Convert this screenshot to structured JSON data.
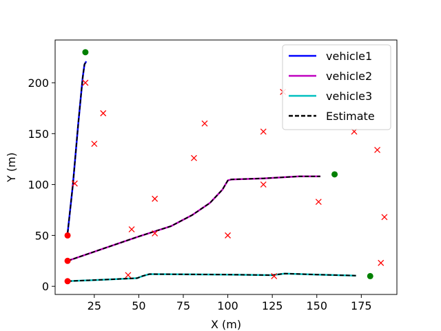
{
  "chart_data": {
    "type": "line",
    "title": "",
    "xlabel": "X (m)",
    "ylabel": "Y (m)",
    "xlim": [
      3,
      195
    ],
    "ylim": [
      -8,
      242
    ],
    "xticks": [
      25,
      50,
      75,
      100,
      125,
      150,
      175
    ],
    "yticks": [
      0,
      50,
      100,
      150,
      200
    ],
    "grid": false,
    "legend_position": "top-right",
    "series": [
      {
        "name": "vehicle1",
        "color": "#0000ff",
        "x": [
          10,
          13,
          16,
          18.5,
          19.5,
          20.5
        ],
        "y": [
          52,
          100,
          160,
          205,
          218,
          221
        ]
      },
      {
        "name": "vehicle2",
        "color": "#bf00bf",
        "x": [
          10,
          30,
          50,
          68,
          80,
          90,
          97,
          100,
          102,
          120,
          140,
          152
        ],
        "y": [
          25,
          37,
          49,
          59,
          70,
          82,
          95,
          104,
          105,
          106,
          108,
          108
        ]
      },
      {
        "name": "vehicle3",
        "color": "#00bfbf",
        "x": [
          10,
          30,
          49,
          52,
          56,
          100,
          125,
          132,
          150,
          172
        ],
        "y": [
          5,
          6.5,
          8,
          10,
          12,
          11.5,
          11,
          12.5,
          11.5,
          10.5
        ]
      }
    ],
    "estimate": {
      "name": "Estimate",
      "color": "#000000",
      "style": "dashed"
    },
    "start_points": {
      "color": "#ff0000",
      "x": [
        10,
        10,
        10
      ],
      "y": [
        50,
        25,
        5
      ]
    },
    "goal_points": {
      "color": "#008000",
      "x": [
        20,
        160,
        180
      ],
      "y": [
        230,
        110,
        10
      ]
    },
    "landmarks": {
      "color": "#ff0000",
      "x": [
        20,
        30,
        25,
        14,
        46,
        59,
        59,
        81,
        87,
        100,
        120,
        120,
        131,
        151,
        171,
        184,
        188,
        186,
        44,
        126
      ],
      "y": [
        200,
        170,
        140,
        101,
        56,
        86,
        52,
        126,
        160,
        50,
        152,
        100,
        191,
        83,
        152,
        134,
        68,
        23,
        11,
        10
      ]
    }
  }
}
